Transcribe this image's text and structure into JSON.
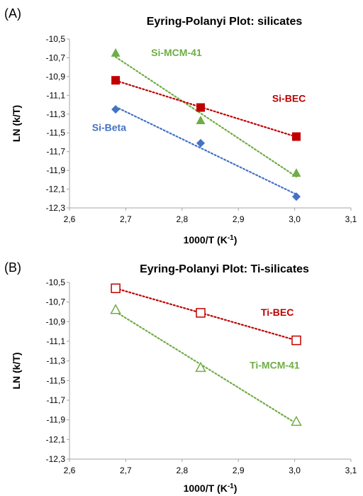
{
  "chart_data": [
    {
      "panel": "(A)",
      "type": "scatter",
      "title": "Eyring-Polanyi Plot: silicates",
      "xlabel": "1000/T (K",
      "xlabel_sup": "-1",
      "xlabel_end": ")",
      "ylabel": "LN (k/T)",
      "xlim": [
        2.6,
        3.1
      ],
      "ylim": [
        -12.3,
        -10.5
      ],
      "xticks": [
        "2,6",
        "2,7",
        "2,8",
        "2,9",
        "3,0",
        "3,1"
      ],
      "yticks": [
        "-10,5",
        "-10,7",
        "-10,9",
        "-11,1",
        "-11,3",
        "-11,5",
        "-11,7",
        "-11,9",
        "-12,1",
        "-12,3"
      ],
      "grid": false,
      "series": [
        {
          "name": "Si-MCM-41",
          "marker": "triangle",
          "filled": true,
          "color": "#70AD47",
          "x": [
            2.682,
            2.833,
            3.003
          ],
          "y": [
            -10.65,
            -11.37,
            -11.93
          ],
          "label_pos": [
            2.745,
            -10.68
          ]
        },
        {
          "name": "Si-BEC",
          "marker": "square",
          "filled": true,
          "color": "#C00000",
          "x": [
            2.682,
            2.833,
            3.003
          ],
          "y": [
            -10.94,
            -11.23,
            -11.54
          ],
          "label_pos": [
            2.96,
            -11.17
          ]
        },
        {
          "name": "Si-Beta",
          "marker": "diamond",
          "filled": true,
          "color": "#4472C4",
          "x": [
            2.682,
            2.833,
            3.003
          ],
          "y": [
            -11.25,
            -11.61,
            -12.18
          ],
          "label_pos": [
            2.64,
            -11.48
          ]
        }
      ]
    },
    {
      "panel": "(B)",
      "type": "scatter",
      "title": "Eyring-Polanyi Plot: Ti-silicates",
      "xlabel": "1000/T (K",
      "xlabel_sup": "-1",
      "xlabel_end": ")",
      "ylabel": "LN (k/T)",
      "xlim": [
        2.6,
        3.1
      ],
      "ylim": [
        -12.3,
        -10.5
      ],
      "xticks": [
        "2,6",
        "2,7",
        "2,8",
        "2,9",
        "3,0",
        "3,1"
      ],
      "yticks": [
        "-10,5",
        "-10,7",
        "-10,9",
        "-11,1",
        "-11,3",
        "-11,5",
        "-11,7",
        "-11,9",
        "-12,1",
        "-12,3"
      ],
      "grid": false,
      "series": [
        {
          "name": "Ti-BEC",
          "marker": "square",
          "filled": false,
          "color": "#C00000",
          "x": [
            2.682,
            2.833,
            3.003
          ],
          "y": [
            -10.56,
            -10.81,
            -11.09
          ],
          "label_pos": [
            2.94,
            -10.84
          ]
        },
        {
          "name": "Ti-MCM-41",
          "marker": "triangle",
          "filled": false,
          "color": "#70AD47",
          "x": [
            2.682,
            2.833,
            3.003
          ],
          "y": [
            -10.78,
            -11.37,
            -11.92
          ],
          "label_pos": [
            2.92,
            -11.38
          ]
        }
      ]
    }
  ]
}
